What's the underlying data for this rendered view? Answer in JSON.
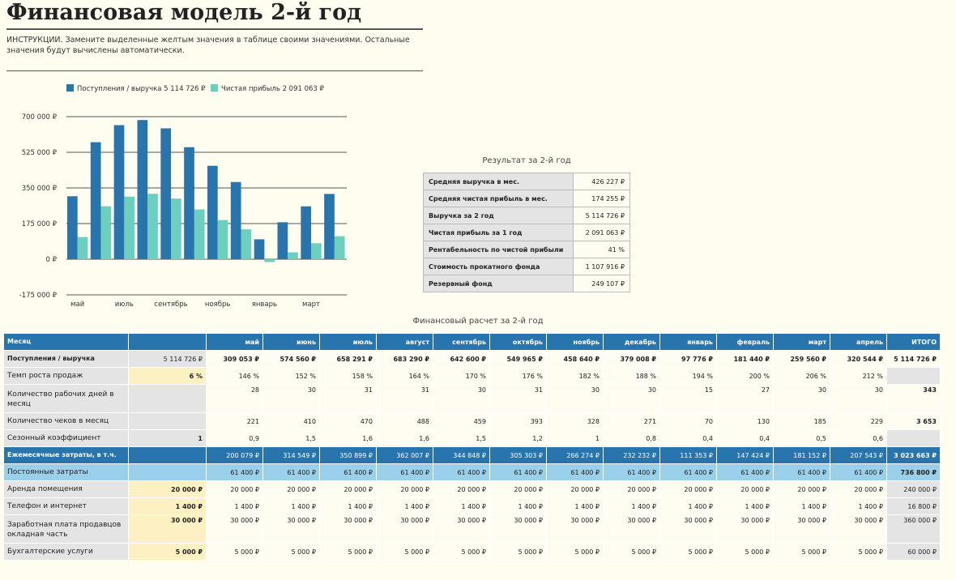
{
  "header": {
    "title": "Финансовая модель 2-й год",
    "instructions": "ИНСТРУКЦИИ. Замените выделенные желтым значения в таблице своими значениями. Остальные значения будут вычислены автоматически."
  },
  "colors": {
    "revenue": "#2874ad",
    "profit": "#6dcfbd",
    "header_blue": "#2874ad",
    "light_blue": "#9bd0ea",
    "input_yellow": "#fdf1c4",
    "background": "#fffcf0"
  },
  "chart_data": {
    "type": "bar",
    "categories": [
      "май",
      "июнь",
      "июль",
      "август",
      "сентябрь",
      "октябрь",
      "ноябрь",
      "декабрь",
      "январь",
      "февраль",
      "март",
      "апрель"
    ],
    "x_tick_labels": [
      "май",
      "июль",
      "сентябрь",
      "ноябрь",
      "январь",
      "март"
    ],
    "series": [
      {
        "name": "Поступления / выручка 5 114 726 ₽",
        "values": [
          309053,
          574560,
          658291,
          683290,
          642600,
          549965,
          458640,
          379008,
          97776,
          181440,
          259560,
          320544
        ]
      },
      {
        "name": "Чистая прибыль  2 091 063 ₽",
        "values": [
          108974,
          260011,
          307392,
          321283,
          297752,
          244662,
          192366,
          146776,
          -13577,
          33986,
          78408,
          112999
        ]
      }
    ],
    "ylim": [
      -175000,
      700000
    ],
    "yticks": [
      "-175 000 ₽",
      "0 ₽",
      "175 000 ₽",
      "350 000 ₽",
      "525 000 ₽",
      "700 000 ₽"
    ],
    "ytick_values": [
      -175000,
      0,
      175000,
      350000,
      525000,
      700000
    ],
    "legend_position": "top",
    "grid": true
  },
  "results": {
    "title": "Результат за 2-й год",
    "rows": [
      {
        "label": "Средняя выручка в мес.",
        "value": "426 227 ₽"
      },
      {
        "label": "Средняя чистая прибыль в мес.",
        "value": "174 255 ₽"
      },
      {
        "label": "Выручка за 2 год",
        "value": "5 114 726 ₽"
      },
      {
        "label": "Чистая прибыль за 1 год",
        "value": "2 091 063 ₽"
      },
      {
        "label": "Рентабельность по чистой прибыли",
        "value": "41 %"
      },
      {
        "label": "Стоимость прокатного фонда",
        "value": "1 107 916 ₽"
      },
      {
        "label": "Резервный фонд",
        "value": "249 107 ₽"
      }
    ]
  },
  "financial": {
    "title": "Финансовый расчет за 2-й год",
    "header": {
      "label": "Месяц",
      "input": "",
      "months": [
        "май",
        "июнь",
        "июль",
        "август",
        "сентябрь",
        "октябрь",
        "ноябрь",
        "декабрь",
        "январь",
        "февраль",
        "март",
        "апрель"
      ],
      "total": "ИТОГО"
    },
    "rows": [
      {
        "cls": "rev",
        "label": "Поступления / выручка",
        "input": "5 114 726 ₽",
        "values": [
          "309 053 ₽",
          "574 560 ₽",
          "658 291 ₽",
          "683 290 ₽",
          "642 600 ₽",
          "549 965 ₽",
          "458 640 ₽",
          "379 008 ₽",
          "97 776 ₽",
          "181 440 ₽",
          "259 560 ₽",
          "320 544 ₽"
        ],
        "total": "5 114 726 ₽"
      },
      {
        "cls": "sub yin",
        "label": "Темп роста продаж",
        "input": "6 %",
        "values": [
          "146 %",
          "152 %",
          "158 %",
          "164 %",
          "170 %",
          "176 %",
          "182 %",
          "188 %",
          "194 %",
          "200 %",
          "206 %",
          "212 %"
        ],
        "total": ""
      },
      {
        "cls": "sub two",
        "label": "Количество рабочих дней в месяц",
        "input": "",
        "values": [
          "28",
          "30",
          "31",
          "31",
          "30",
          "31",
          "30",
          "30",
          "15",
          "27",
          "30",
          "30"
        ],
        "total": "343"
      },
      {
        "cls": "sub",
        "label": "Количество чеков в месяц",
        "input": "",
        "values": [
          "221",
          "410",
          "470",
          "488",
          "459",
          "393",
          "328",
          "271",
          "70",
          "130",
          "185",
          "229"
        ],
        "total": "3 653"
      },
      {
        "cls": "sub",
        "label": "Сезонный коэффициент",
        "input": "1",
        "values": [
          "0,9",
          "1,5",
          "1,6",
          "1,6",
          "1,5",
          "1,2",
          "1",
          "0,8",
          "0,4",
          "0,4",
          "0,5",
          "0,6"
        ],
        "total": ""
      },
      {
        "cls": "exp",
        "label": "Ежемесячные затраты, в т.ч.",
        "input": "",
        "values": [
          "200 079 ₽",
          "314 549 ₽",
          "350 899 ₽",
          "362 007 ₽",
          "344 848 ₽",
          "305 303 ₽",
          "266 274 ₽",
          "232 232 ₽",
          "111 353 ₽",
          "147 424 ₽",
          "181 152 ₽",
          "207 543 ₽"
        ],
        "total": "3 023 663 ₽"
      },
      {
        "cls": "fix",
        "label": "Постоянные затраты",
        "input": "",
        "values": [
          "61 400 ₽",
          "61 400 ₽",
          "61 400 ₽",
          "61 400 ₽",
          "61 400 ₽",
          "61 400 ₽",
          "61 400 ₽",
          "61 400 ₽",
          "61 400 ₽",
          "61 400 ₽",
          "61 400 ₽",
          "61 400 ₽"
        ],
        "total": "736 800 ₽"
      },
      {
        "cls": "sub yin",
        "label": "Аренда помещения",
        "input": "20 000 ₽",
        "values": [
          "20 000 ₽",
          "20 000 ₽",
          "20 000 ₽",
          "20 000 ₽",
          "20 000 ₽",
          "20 000 ₽",
          "20 000 ₽",
          "20 000 ₽",
          "20 000 ₽",
          "20 000 ₽",
          "20 000 ₽",
          "20 000 ₽"
        ],
        "total": "240 000 ₽"
      },
      {
        "cls": "sub yin",
        "label": "Телефон и интернет",
        "input": "1 400 ₽",
        "values": [
          "1 400 ₽",
          "1 400 ₽",
          "1 400 ₽",
          "1 400 ₽",
          "1 400 ₽",
          "1 400 ₽",
          "1 400 ₽",
          "1 400 ₽",
          "1 400 ₽",
          "1 400 ₽",
          "1 400 ₽",
          "1 400 ₽"
        ],
        "total": "16 800 ₽"
      },
      {
        "cls": "sub two yin",
        "label": "Заработная плата продавцов окладная часть",
        "input": "30 000 ₽",
        "values": [
          "30 000 ₽",
          "30 000 ₽",
          "30 000 ₽",
          "30 000 ₽",
          "30 000 ₽",
          "30 000 ₽",
          "30 000 ₽",
          "30 000 ₽",
          "30 000 ₽",
          "30 000 ₽",
          "30 000 ₽",
          "30 000 ₽"
        ],
        "total": "360 000 ₽"
      },
      {
        "cls": "sub yin",
        "label": "Бухгалтерские услуги",
        "input": "5 000 ₽",
        "values": [
          "5 000 ₽",
          "5 000 ₽",
          "5 000 ₽",
          "5 000 ₽",
          "5 000 ₽",
          "5 000 ₽",
          "5 000 ₽",
          "5 000 ₽",
          "5 000 ₽",
          "5 000 ₽",
          "5 000 ₽",
          "5 000 ₽"
        ],
        "total": "60 000 ₽"
      }
    ]
  }
}
